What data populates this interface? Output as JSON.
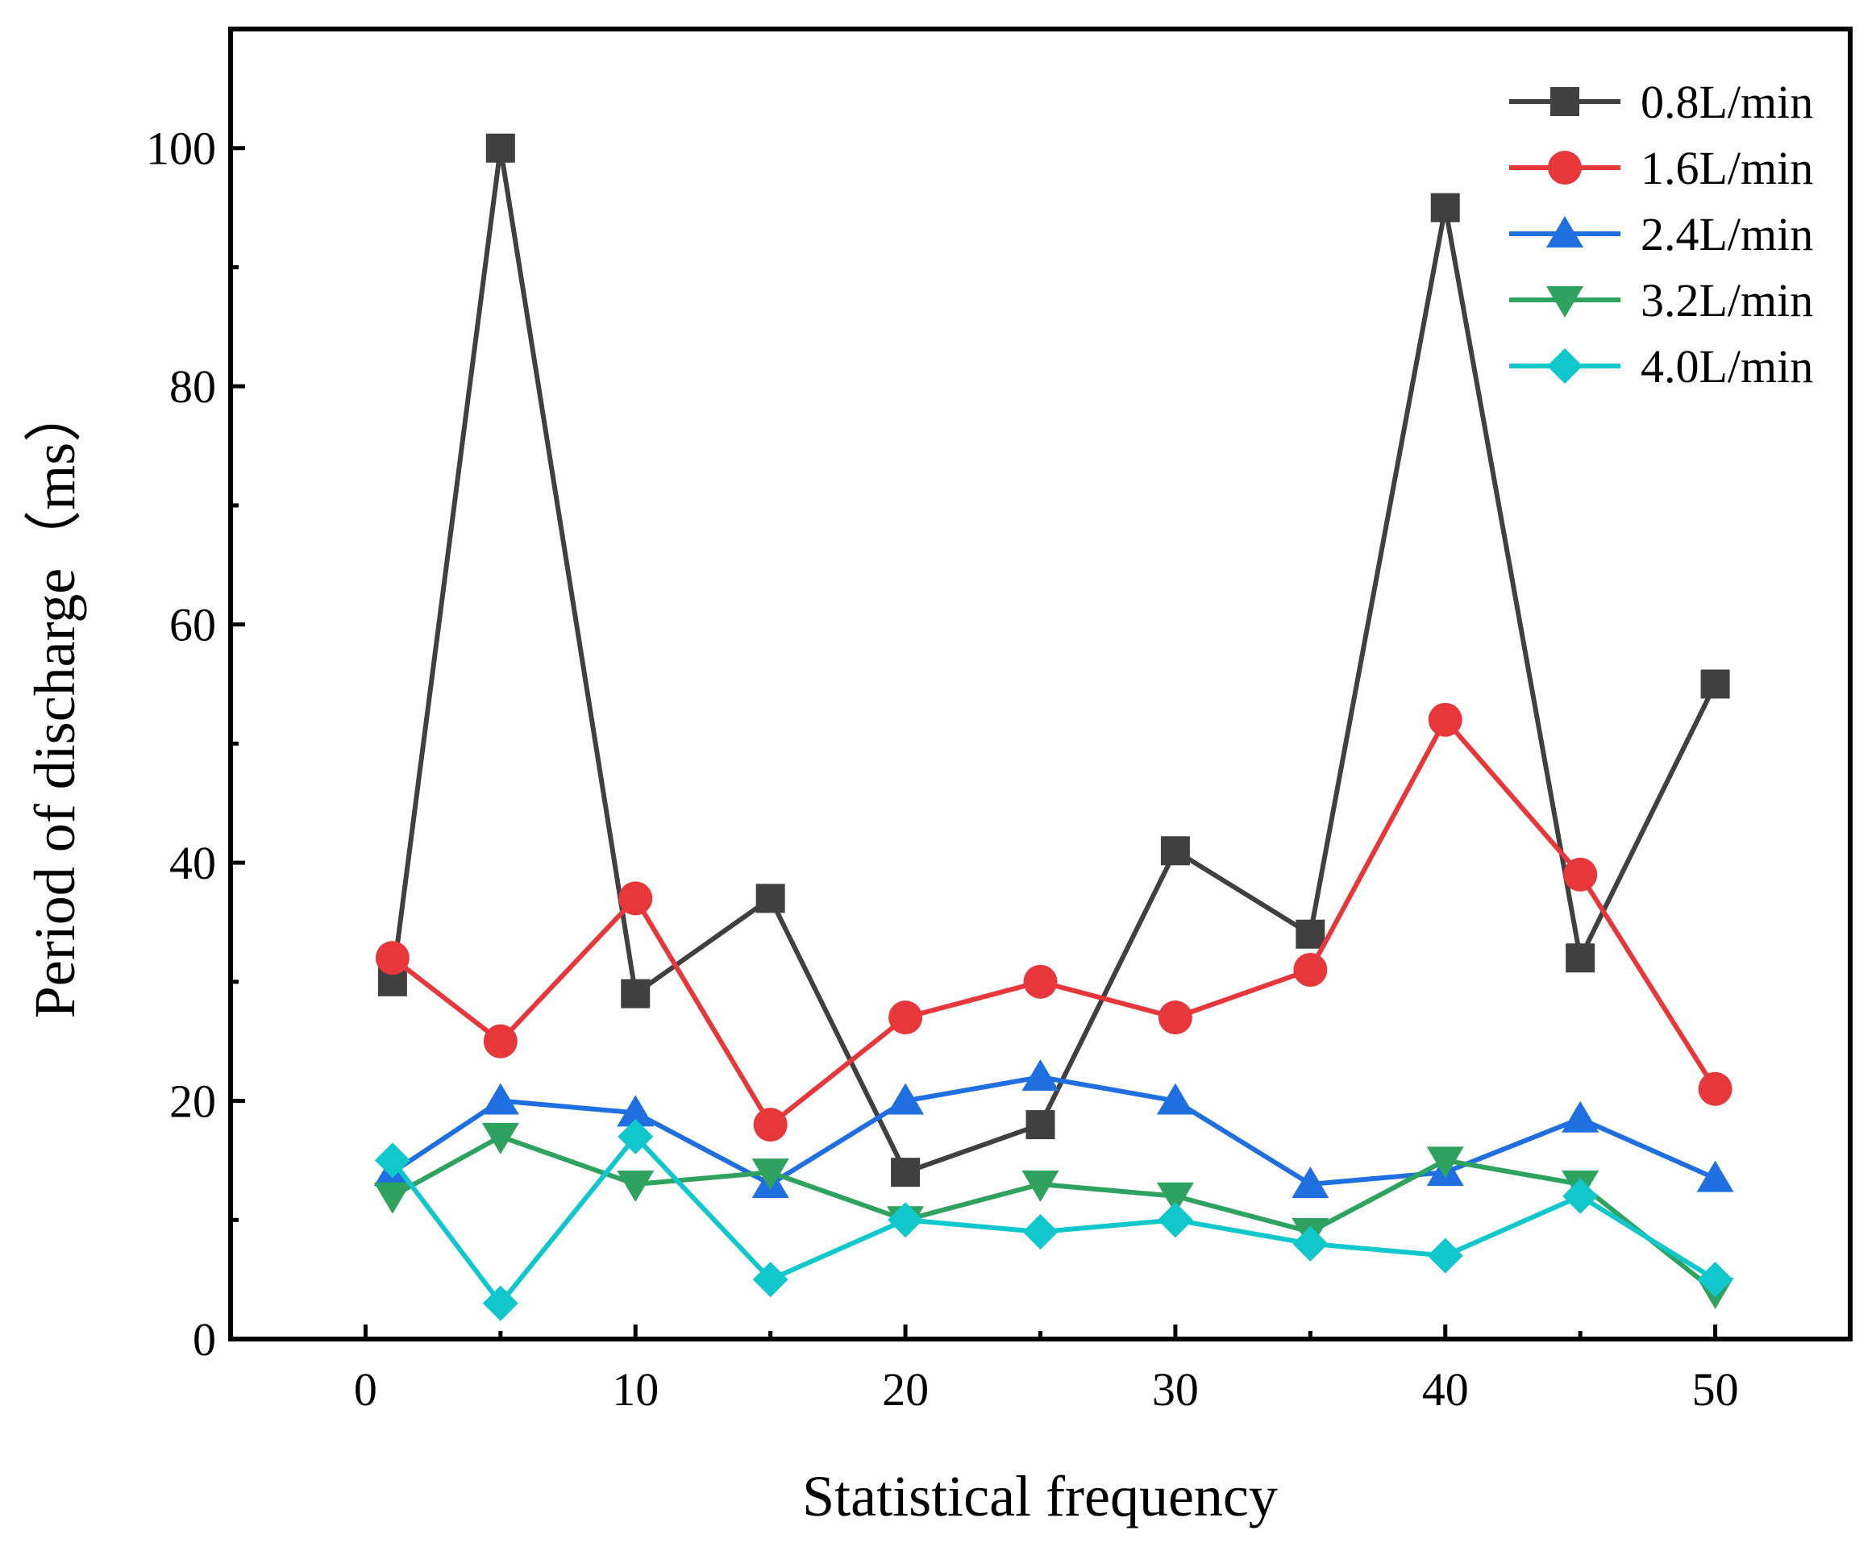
{
  "chart_data": {
    "type": "line",
    "title": "",
    "xlabel": "Statistical frequency",
    "ylabel": "Period of discharge（ms）",
    "xlim": [
      -5,
      55
    ],
    "ylim": [
      0,
      110
    ],
    "xticks": [
      0,
      10,
      20,
      30,
      40,
      50
    ],
    "yticks": [
      0,
      20,
      40,
      60,
      80,
      100
    ],
    "x": [
      1,
      5,
      10,
      15,
      20,
      25,
      30,
      35,
      40,
      45,
      50
    ],
    "legend_position": "top-right",
    "grid": false,
    "series": [
      {
        "name": "0.8L/min",
        "color": "#404040",
        "marker": "square",
        "values": [
          30,
          100,
          29,
          37,
          14,
          18,
          41,
          34,
          95,
          32,
          55
        ]
      },
      {
        "name": "1.6L/min",
        "color": "#e8373a",
        "marker": "circle",
        "values": [
          32,
          25,
          37,
          18,
          27,
          30,
          27,
          31,
          52,
          39,
          21
        ]
      },
      {
        "name": "2.4L/min",
        "color": "#1f6fe0",
        "marker": "triangle-up",
        "values": [
          14,
          20,
          19,
          13,
          20,
          22,
          20,
          13,
          14,
          18.5,
          13.5
        ]
      },
      {
        "name": "3.2L/min",
        "color": "#2ea35f",
        "marker": "triangle-down",
        "values": [
          12,
          17,
          13,
          14,
          10,
          13,
          12,
          9,
          15,
          13,
          4
        ]
      },
      {
        "name": "4.0L/min",
        "color": "#10c8cc",
        "marker": "diamond",
        "values": [
          15,
          3,
          17,
          5,
          10,
          9,
          10,
          8,
          7,
          12,
          5
        ]
      }
    ]
  }
}
